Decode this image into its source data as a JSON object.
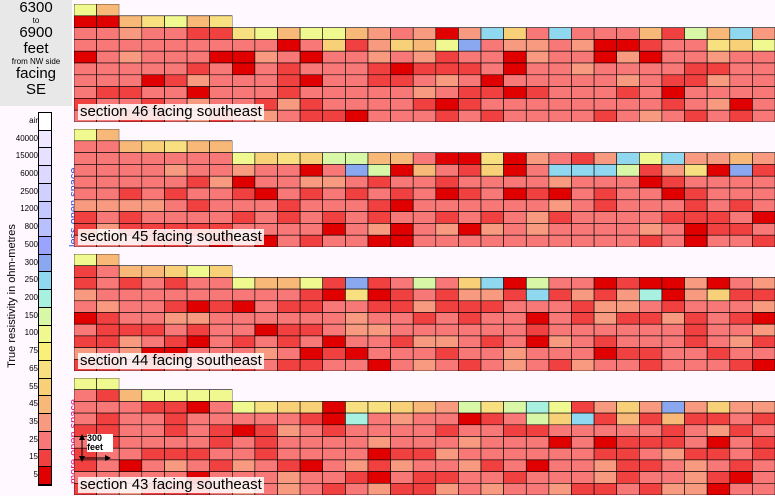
{
  "title": {
    "line1": "6300",
    "line2": "to",
    "line3": "6900",
    "line4": "feet",
    "line5": "from NW side",
    "line6": "facing",
    "line7": "SE"
  },
  "legend": {
    "axis_label": "True resistivity in ohm-metres",
    "less": "less open space",
    "more": "more open space",
    "labels": [
      "air",
      "40000",
      "15000",
      "6000",
      "2500",
      "1200",
      "800",
      "500",
      "300",
      "250",
      "200",
      "150",
      "100",
      "75",
      "65",
      "55",
      "45",
      "35",
      "25",
      "15",
      "5"
    ],
    "colors": [
      "#ffffff",
      "#f0e8ff",
      "#e8e0ff",
      "#dcd8ff",
      "#d0d0ff",
      "#c4c8ff",
      "#b8c0ff",
      "#9aa4ff",
      "#8aa8f0",
      "#90d8f0",
      "#a8f0e0",
      "#d8f8a8",
      "#f0f890",
      "#f8f078",
      "#f8e080",
      "#f8d078",
      "#f8b878",
      "#f89a80",
      "#f87878",
      "#f04040",
      "#e00000"
    ]
  },
  "scale": {
    "label": "300 feet"
  },
  "sections": [
    {
      "label": "section 46 facing southeast"
    },
    {
      "label": "section 45 facing southeast"
    },
    {
      "label": "section 44 facing southeast"
    },
    {
      "label": "section 43 facing southeast"
    }
  ]
}
